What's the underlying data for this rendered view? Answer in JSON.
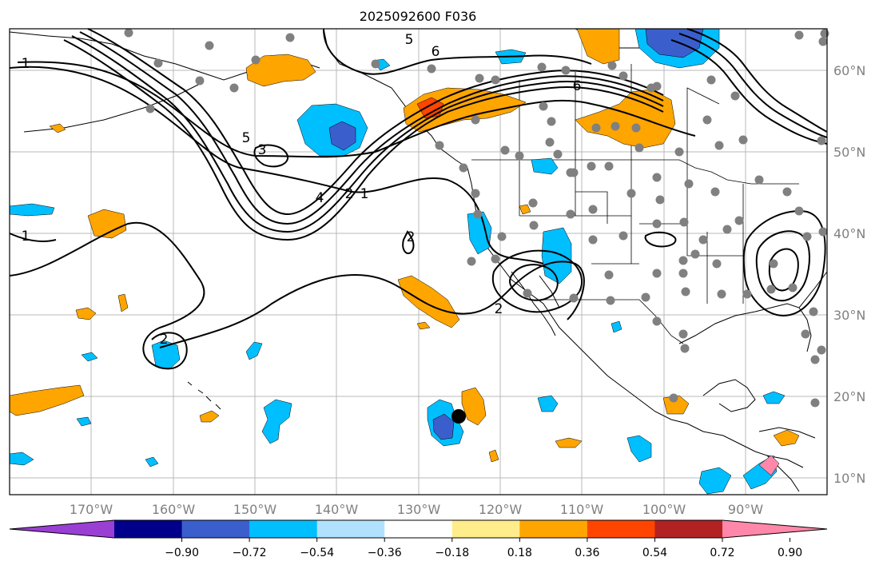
{
  "title": "2025092600 F036",
  "map": {
    "lon_labels": [
      "170°W",
      "160°W",
      "150°W",
      "140°W",
      "130°W",
      "120°W",
      "110°W",
      "100°W",
      "90°W"
    ],
    "lat_labels": [
      "60°N",
      "50°N",
      "40°N",
      "30°N",
      "20°N",
      "10°N"
    ],
    "contour_labels": [
      "1",
      "1",
      "2",
      "3",
      "4",
      "5",
      "5",
      "6",
      "6",
      "2",
      "1",
      "2",
      "2"
    ],
    "grid": true,
    "colors": {
      "frame": "#000000",
      "grid": "#b0b0b0",
      "coast": "#000000",
      "station": "#808080",
      "marker": "#000000"
    }
  },
  "colorbar": {
    "tick_labels": [
      "−0.90",
      "−0.72",
      "−0.54",
      "−0.36",
      "−0.18",
      "0.18",
      "0.36",
      "0.54",
      "0.72",
      "0.90"
    ],
    "colors": [
      "#9a3fd4",
      "#00008b",
      "#3a5fcd",
      "#00bfff",
      "#b0e2ff",
      "#ffffff",
      "#ffec8b",
      "#ffa500",
      "#ff4500",
      "#b22222",
      "#ff88aa"
    ]
  }
}
